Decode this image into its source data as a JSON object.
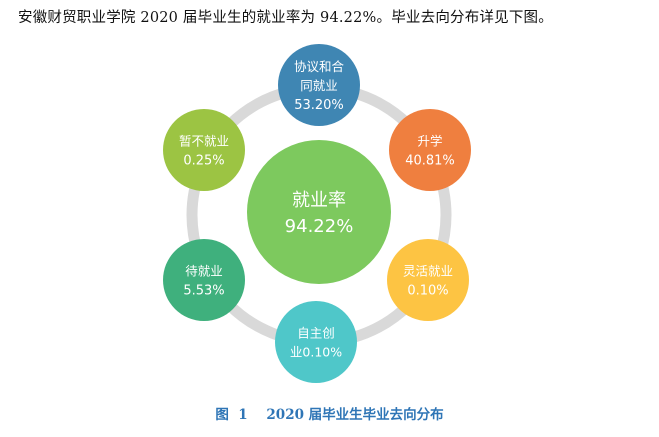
{
  "intro_text": "安徽财贸职业学院 2020 届毕业生的就业率为 94.22%。毕业去向分布详见下图。",
  "center": {
    "label": "就业率",
    "value": "94.22%",
    "color": "#7dc95e"
  },
  "nodes": [
    {
      "id": "agreement",
      "label_lines": [
        "协议和合",
        "同就业"
      ],
      "value": "53.20%",
      "color": "#3f86b3"
    },
    {
      "id": "further-study",
      "label_lines": [
        "升学"
      ],
      "value": "40.81%",
      "color": "#ef7f3f"
    },
    {
      "id": "flexible",
      "label_lines": [
        "灵活就业"
      ],
      "value": "0.10%",
      "color": "#fdc443"
    },
    {
      "id": "self-employed",
      "label_lines": [
        "自主创",
        "业0.10%"
      ],
      "value": "",
      "color": "#4fc7c9"
    },
    {
      "id": "awaiting",
      "label_lines": [
        "待就业"
      ],
      "value": "5.53%",
      "color": "#3fb07d"
    },
    {
      "id": "not-employed",
      "label_lines": [
        "暂不就业"
      ],
      "value": "0.25%",
      "color": "#9cc443"
    }
  ],
  "ring_color": "#d9d9d9",
  "caption": "图  1    2020 届毕业生毕业去向分布"
}
